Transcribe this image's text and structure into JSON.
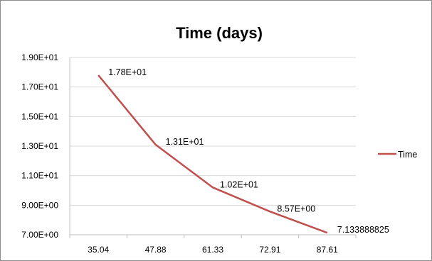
{
  "chart_data": {
    "type": "line",
    "title": "Time (days)",
    "xlabel": "",
    "ylabel": "",
    "categories": [
      "35.04",
      "47.88",
      "61.33",
      "72.91",
      "87.61"
    ],
    "y_ticks": [
      "7.00E+00",
      "9.00E+00",
      "1.10E+01",
      "1.30E+01",
      "1.50E+01",
      "1.70E+01",
      "1.90E+01"
    ],
    "ylim": [
      7,
      19
    ],
    "grid": true,
    "legend_position": "right",
    "series": [
      {
        "name": "Time",
        "color": "#c0504d",
        "values": [
          17.8,
          13.1,
          10.2,
          8.57,
          7.133888825
        ],
        "labels": [
          "1.78E+01",
          "1.31E+01",
          "1.02E+01",
          "8.57E+00",
          "7.133888825"
        ]
      }
    ]
  }
}
